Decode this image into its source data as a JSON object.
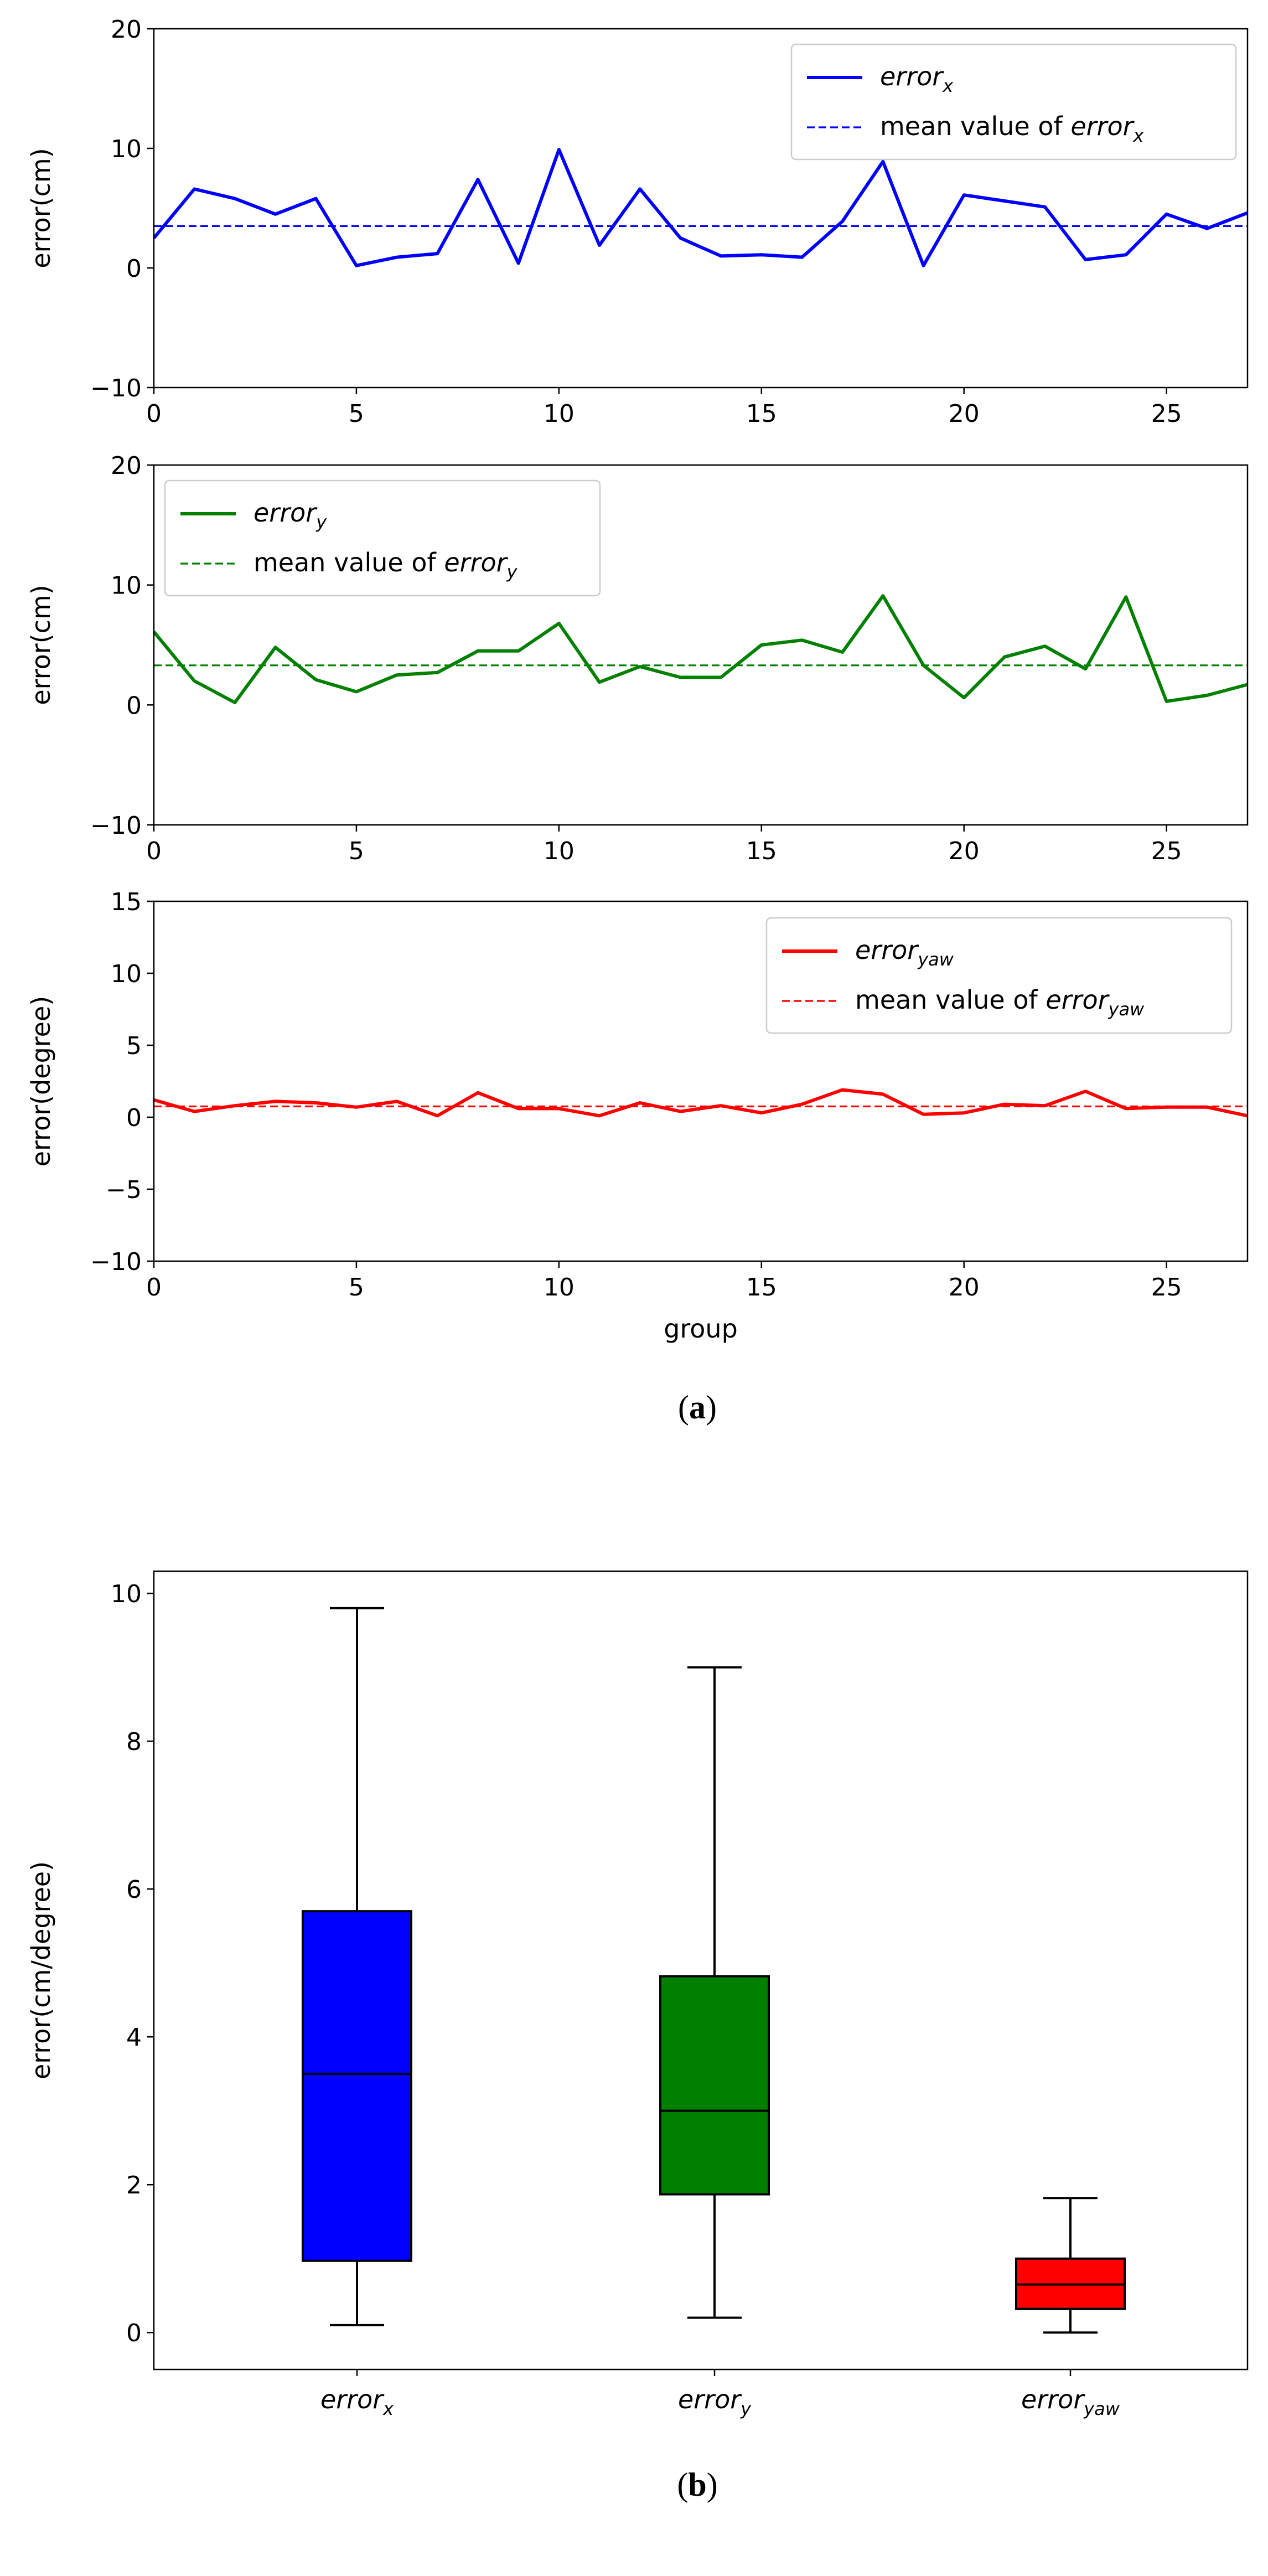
{
  "figure": {
    "caption_a": {
      "open": "(",
      "letter": "a",
      "close": ")"
    },
    "caption_b": {
      "open": "(",
      "letter": "b",
      "close": ")"
    }
  },
  "chart_data": [
    {
      "type": "line",
      "ylabel": "error(cm)",
      "xlabel": "",
      "xlim": [
        0,
        27
      ],
      "ylim": [
        -10,
        20
      ],
      "xticks": [
        0,
        5,
        10,
        15,
        20,
        25
      ],
      "yticks": [
        -10,
        0,
        10,
        20
      ],
      "legend_position": "top-right",
      "color": "#0000ff",
      "series": [
        {
          "name": "error_x",
          "name_base": "error",
          "name_sub": "x",
          "style": "solid",
          "x": [
            0,
            1,
            2,
            3,
            4,
            5,
            6,
            7,
            8,
            9,
            10,
            11,
            12,
            13,
            14,
            15,
            16,
            17,
            18,
            19,
            20,
            21,
            22,
            23,
            24,
            25,
            26,
            27
          ],
          "values": [
            2.5,
            6.6,
            5.8,
            4.5,
            5.8,
            0.2,
            0.9,
            1.2,
            7.4,
            0.4,
            9.9,
            1.9,
            6.6,
            2.5,
            1.0,
            1.1,
            0.9,
            3.9,
            8.9,
            0.2,
            6.1,
            5.6,
            5.1,
            0.7,
            1.1,
            4.5,
            3.3,
            4.6
          ]
        },
        {
          "name": "mean value of error_x",
          "name_prefix": "mean value of ",
          "name_base": "error",
          "name_sub": "x",
          "style": "dashed",
          "values": [
            3.5
          ]
        }
      ]
    },
    {
      "type": "line",
      "ylabel": "error(cm)",
      "xlabel": "",
      "xlim": [
        0,
        27
      ],
      "ylim": [
        -10,
        20
      ],
      "xticks": [
        0,
        5,
        10,
        15,
        20,
        25
      ],
      "yticks": [
        -10,
        0,
        10,
        20
      ],
      "legend_position": "top-left",
      "color": "#008000",
      "series": [
        {
          "name": "error_y",
          "name_base": "error",
          "name_sub": "y",
          "style": "solid",
          "x": [
            0,
            1,
            2,
            3,
            4,
            5,
            6,
            7,
            8,
            9,
            10,
            11,
            12,
            13,
            14,
            15,
            16,
            17,
            18,
            19,
            20,
            21,
            22,
            23,
            24,
            25,
            26,
            27
          ],
          "values": [
            6.1,
            2.0,
            0.2,
            4.8,
            2.1,
            1.1,
            2.5,
            2.7,
            4.5,
            4.5,
            6.8,
            1.9,
            3.2,
            2.3,
            2.3,
            5.0,
            5.4,
            4.4,
            9.1,
            3.3,
            0.6,
            4.0,
            4.9,
            3.0,
            9.0,
            0.3,
            0.8,
            1.7
          ]
        },
        {
          "name": "mean value of error_y",
          "name_prefix": "mean value of ",
          "name_base": "error",
          "name_sub": "y",
          "style": "dashed",
          "values": [
            3.3
          ]
        }
      ]
    },
    {
      "type": "line",
      "ylabel": "error(degree)",
      "xlabel": "group",
      "xlim": [
        0,
        27
      ],
      "ylim": [
        -10,
        15
      ],
      "xticks": [
        0,
        5,
        10,
        15,
        20,
        25
      ],
      "yticks": [
        -10,
        -5,
        0,
        5,
        10,
        15
      ],
      "legend_position": "top-right",
      "color": "#ff0000",
      "series": [
        {
          "name": "error_yaw",
          "name_base": "error",
          "name_sub": "yaw",
          "style": "solid",
          "x": [
            0,
            1,
            2,
            3,
            4,
            5,
            6,
            7,
            8,
            9,
            10,
            11,
            12,
            13,
            14,
            15,
            16,
            17,
            18,
            19,
            20,
            21,
            22,
            23,
            24,
            25,
            26,
            27
          ],
          "values": [
            1.2,
            0.4,
            0.8,
            1.1,
            1.0,
            0.7,
            1.1,
            0.1,
            1.7,
            0.6,
            0.6,
            0.1,
            1.0,
            0.4,
            0.8,
            0.3,
            0.9,
            1.9,
            1.6,
            0.2,
            0.3,
            0.9,
            0.8,
            1.8,
            0.6,
            0.7,
            0.7,
            0.1
          ]
        },
        {
          "name": "mean value of error_yaw",
          "name_prefix": "mean value of ",
          "name_base": "error",
          "name_sub": "yaw",
          "style": "dashed",
          "values": [
            0.75
          ]
        }
      ]
    },
    {
      "type": "box",
      "ylabel": "error(cm/degree)",
      "ylim": [
        -0.5,
        10.3
      ],
      "yticks": [
        0,
        2,
        4,
        6,
        8,
        10
      ],
      "boxes": [
        {
          "label_base": "error",
          "label_sub": "x",
          "color": "#0000ff",
          "whisker_low": 0.1,
          "q1": 0.97,
          "median": 3.5,
          "q3": 5.7,
          "whisker_high": 9.8
        },
        {
          "label_base": "error",
          "label_sub": "y",
          "color": "#008000",
          "whisker_low": 0.2,
          "q1": 1.87,
          "median": 3.0,
          "q3": 4.82,
          "whisker_high": 9.0
        },
        {
          "label_base": "error",
          "label_sub": "yaw",
          "color": "#ff0000",
          "whisker_low": 0.0,
          "q1": 0.32,
          "median": 0.65,
          "q3": 1.0,
          "whisker_high": 1.82
        }
      ]
    }
  ]
}
